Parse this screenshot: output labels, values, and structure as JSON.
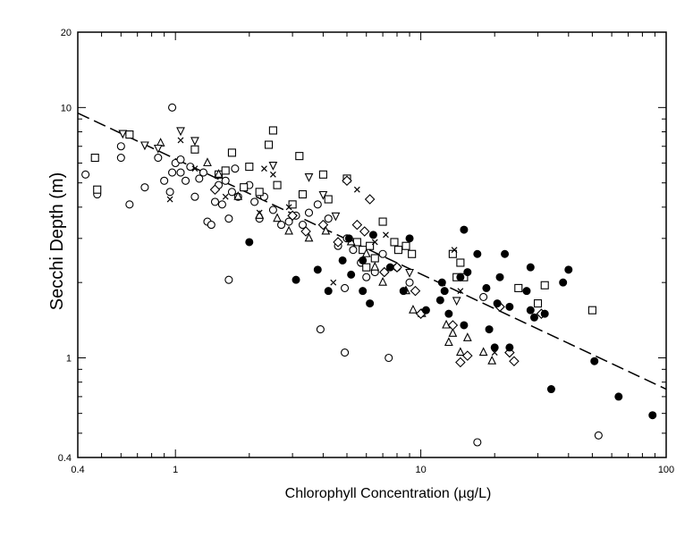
{
  "chart_data": {
    "type": "scatter",
    "title": "",
    "xlabel": "Chlorophyll Concentration (µg/L)",
    "ylabel": "Secchi Depth (m)",
    "x_scale": "log",
    "y_scale": "log",
    "xlim": [
      0.4,
      100
    ],
    "ylim": [
      0.4,
      20
    ],
    "x_ticks": [
      0.4,
      1,
      10,
      100
    ],
    "x_tick_labels": [
      "0.4",
      "1",
      "10",
      "100"
    ],
    "y_ticks": [
      0.4,
      1,
      10,
      20
    ],
    "y_tick_labels": [
      "0.4",
      "1",
      "10",
      "20"
    ],
    "grid": false,
    "legend": "none",
    "series": [
      {
        "marker": "open-circle",
        "points": [
          [
            0.43,
            5.4
          ],
          [
            0.48,
            4.5
          ],
          [
            0.6,
            6.3
          ],
          [
            0.6,
            7
          ],
          [
            0.65,
            4.1
          ],
          [
            0.75,
            4.8
          ],
          [
            0.85,
            6.3
          ],
          [
            0.9,
            5.1
          ],
          [
            0.97,
            10
          ],
          [
            0.95,
            4.6
          ],
          [
            0.97,
            5.5
          ],
          [
            1,
            6
          ],
          [
            1.05,
            5.5
          ],
          [
            1.05,
            6.2
          ],
          [
            1.1,
            5.1
          ],
          [
            1.15,
            5.8
          ],
          [
            1.2,
            4.4
          ],
          [
            1.25,
            5.2
          ],
          [
            1.3,
            5.5
          ],
          [
            1.35,
            3.5
          ],
          [
            1.4,
            3.4
          ],
          [
            1.45,
            4.2
          ],
          [
            1.5,
            4.9
          ],
          [
            1.55,
            4.1
          ],
          [
            1.6,
            5.1
          ],
          [
            1.65,
            3.6
          ],
          [
            1.7,
            4.6
          ],
          [
            1.75,
            5.7
          ],
          [
            1.8,
            4.4
          ],
          [
            2,
            4.9
          ],
          [
            2.1,
            4.2
          ],
          [
            2.2,
            3.6
          ],
          [
            2.3,
            4.4
          ],
          [
            2.5,
            3.9
          ],
          [
            2.7,
            3.4
          ],
          [
            2.9,
            3.5
          ],
          [
            3.1,
            3.7
          ],
          [
            3.3,
            3.4
          ],
          [
            3.5,
            3.8
          ],
          [
            3.8,
            4.1
          ],
          [
            4.2,
            3.6
          ],
          [
            4.6,
            2.8
          ],
          [
            5,
            3
          ],
          [
            5.3,
            2.7
          ],
          [
            5.7,
            2.4
          ],
          [
            6,
            2.1
          ],
          [
            6.5,
            2.2
          ],
          [
            7,
            2.6
          ],
          [
            8,
            2.3
          ],
          [
            9,
            2
          ],
          [
            4.9,
            1.05
          ],
          [
            4.9,
            1.9
          ],
          [
            1.65,
            2.05
          ],
          [
            3.9,
            1.3
          ],
          [
            7.4,
            1
          ],
          [
            17,
            0.46
          ],
          [
            18,
            1.75
          ],
          [
            53,
            0.49
          ]
        ]
      },
      {
        "marker": "open-square",
        "points": [
          [
            0.47,
            6.3
          ],
          [
            0.48,
            4.7
          ],
          [
            0.65,
            7.8
          ],
          [
            1.2,
            6.8
          ],
          [
            1.5,
            5.4
          ],
          [
            1.6,
            5.6
          ],
          [
            1.7,
            6.6
          ],
          [
            1.9,
            4.8
          ],
          [
            2,
            5.8
          ],
          [
            2.2,
            4.6
          ],
          [
            2.4,
            7.1
          ],
          [
            2.5,
            8.1
          ],
          [
            2.6,
            4.9
          ],
          [
            3,
            4.1
          ],
          [
            3.2,
            6.4
          ],
          [
            3.3,
            4.5
          ],
          [
            4,
            5.4
          ],
          [
            4.2,
            4.3
          ],
          [
            5,
            5.2
          ],
          [
            5.5,
            2.9
          ],
          [
            5.8,
            2.7
          ],
          [
            6,
            2.3
          ],
          [
            6.2,
            2.8
          ],
          [
            6.5,
            2.5
          ],
          [
            7,
            3.5
          ],
          [
            7.8,
            2.9
          ],
          [
            8.1,
            2.7
          ],
          [
            8.7,
            2.8
          ],
          [
            9.2,
            2.6
          ],
          [
            13.5,
            2.6
          ],
          [
            14,
            2.1
          ],
          [
            14.5,
            2.4
          ],
          [
            15,
            2.1
          ],
          [
            25,
            1.9
          ],
          [
            30,
            1.65
          ],
          [
            32,
            1.95
          ],
          [
            50,
            1.55
          ]
        ]
      },
      {
        "marker": "open-triangle-up",
        "points": [
          [
            0.87,
            7.2
          ],
          [
            1.35,
            6
          ],
          [
            1.5,
            5.4
          ],
          [
            1.8,
            4.4
          ],
          [
            2.2,
            3.7
          ],
          [
            2.6,
            3.6
          ],
          [
            2.9,
            3.2
          ],
          [
            3.5,
            3
          ],
          [
            4.1,
            3.2
          ],
          [
            5.2,
            2.9
          ],
          [
            6,
            2.6
          ],
          [
            6.5,
            2.3
          ],
          [
            7,
            2
          ],
          [
            8.7,
            1.85
          ],
          [
            9.3,
            1.55
          ],
          [
            10.1,
            1.5
          ],
          [
            12.7,
            1.35
          ],
          [
            13,
            1.15
          ],
          [
            13.5,
            1.25
          ],
          [
            14.5,
            1.05
          ],
          [
            15.5,
            1.2
          ],
          [
            18,
            1.05
          ],
          [
            19.5,
            0.97
          ]
        ]
      },
      {
        "marker": "open-triangle-down",
        "points": [
          [
            0.61,
            7.9
          ],
          [
            0.75,
            7.1
          ],
          [
            0.85,
            6.9
          ],
          [
            1.05,
            8.1
          ],
          [
            1.2,
            7.4
          ],
          [
            2.5,
            5.9
          ],
          [
            3.5,
            5.3
          ],
          [
            4,
            4.5
          ],
          [
            4.5,
            3.7
          ],
          [
            9,
            2.2
          ],
          [
            14,
            1.7
          ]
        ]
      },
      {
        "marker": "open-diamond",
        "points": [
          [
            1.45,
            4.7
          ],
          [
            3,
            3.7
          ],
          [
            3.4,
            3.2
          ],
          [
            4,
            3.4
          ],
          [
            4.6,
            2.9
          ],
          [
            5,
            5.1
          ],
          [
            5.5,
            3.4
          ],
          [
            5.9,
            3.2
          ],
          [
            6.2,
            4.3
          ],
          [
            7.1,
            2.2
          ],
          [
            8,
            2.3
          ],
          [
            9.5,
            1.85
          ],
          [
            10,
            1.5
          ],
          [
            13.5,
            1.35
          ],
          [
            14.5,
            0.96
          ],
          [
            15.5,
            1.02
          ],
          [
            21,
            1.6
          ],
          [
            23,
            1.05
          ],
          [
            24,
            0.97
          ],
          [
            31,
            1.5
          ]
        ]
      },
      {
        "marker": "filled-circle",
        "points": [
          [
            2,
            2.9
          ],
          [
            3.1,
            2.05
          ],
          [
            3.8,
            2.25
          ],
          [
            4.2,
            1.85
          ],
          [
            4.8,
            2.45
          ],
          [
            5.1,
            3
          ],
          [
            5.2,
            2.15
          ],
          [
            5.8,
            1.85
          ],
          [
            5.8,
            2.45
          ],
          [
            6.2,
            1.65
          ],
          [
            6.4,
            3.1
          ],
          [
            7.5,
            2.3
          ],
          [
            8.5,
            1.85
          ],
          [
            9,
            3
          ],
          [
            10.5,
            1.55
          ],
          [
            12,
            1.7
          ],
          [
            12.2,
            2
          ],
          [
            12.5,
            1.85
          ],
          [
            13,
            1.5
          ],
          [
            14.5,
            2.1
          ],
          [
            15,
            1.35
          ],
          [
            15.5,
            2.2
          ],
          [
            17,
            2.6
          ],
          [
            18.5,
            1.9
          ],
          [
            19,
            1.3
          ],
          [
            20,
            1.1
          ],
          [
            20.5,
            1.65
          ],
          [
            21,
            2.1
          ],
          [
            22,
            2.6
          ],
          [
            23,
            1.6
          ],
          [
            23,
            1.1
          ],
          [
            27,
            1.85
          ],
          [
            28,
            1.55
          ],
          [
            28,
            2.3
          ],
          [
            29,
            1.45
          ],
          [
            32,
            1.5
          ],
          [
            38,
            2
          ],
          [
            40,
            2.25
          ],
          [
            34,
            0.75
          ],
          [
            51,
            0.97
          ],
          [
            64,
            0.7
          ],
          [
            88,
            0.59
          ],
          [
            15,
            3.25
          ]
        ]
      },
      {
        "marker": "cross",
        "points": [
          [
            0.95,
            4.3
          ],
          [
            1.2,
            5.7
          ],
          [
            1.6,
            4.4
          ],
          [
            2.3,
            5.7
          ],
          [
            2.5,
            5.4
          ],
          [
            2.9,
            4
          ],
          [
            5.5,
            4.7
          ],
          [
            6.5,
            2.9
          ],
          [
            7.2,
            3.1
          ],
          [
            13.7,
            2.7
          ],
          [
            14.5,
            1.85
          ],
          [
            4.4,
            2
          ],
          [
            20,
            1.05
          ],
          [
            1.05,
            7.4
          ],
          [
            2.2,
            3.8
          ]
        ]
      }
    ],
    "trend_line": {
      "style": "dashed",
      "x": [
        0.4,
        100
      ],
      "y": [
        9.5,
        0.75
      ]
    }
  }
}
